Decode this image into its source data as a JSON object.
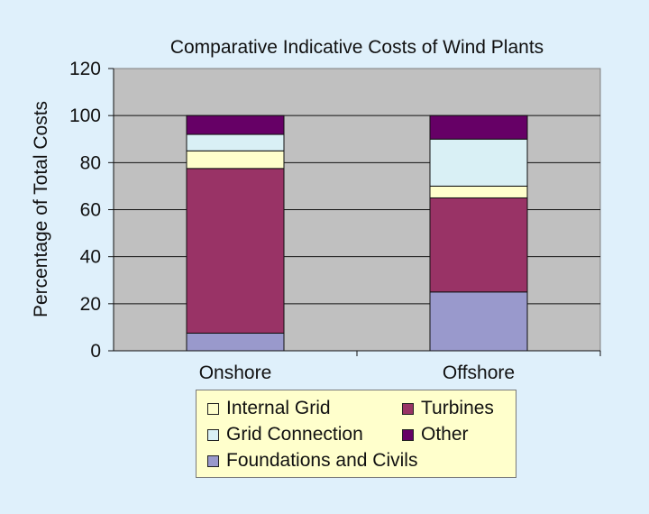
{
  "chart_data": {
    "type": "bar",
    "stacked": true,
    "title": "Comparative Indicative Costs of Wind Plants",
    "xlabel": "",
    "ylabel": "Percentage of Total Costs",
    "ylim": [
      0,
      120
    ],
    "yticks": [
      "0",
      "20",
      "40",
      "60",
      "80",
      "100",
      "120"
    ],
    "grid": true,
    "legend_position": "bottom",
    "categories": [
      "Onshore",
      "Offshore"
    ],
    "series": [
      {
        "name": "Foundations and Civils",
        "color": "#9999cc",
        "values": [
          7.5,
          25
        ]
      },
      {
        "name": "Turbines",
        "color": "#993366",
        "values": [
          70,
          40
        ]
      },
      {
        "name": "Internal Grid",
        "color": "#ffffcc",
        "values": [
          7.5,
          5
        ]
      },
      {
        "name": "Grid Connection",
        "color": "#d9f0f5",
        "values": [
          7,
          20
        ]
      },
      {
        "name": "Other",
        "color": "#660066",
        "values": [
          8,
          10
        ]
      }
    ]
  },
  "legend": {
    "items": [
      {
        "label": "Internal Grid",
        "color": "#ffffcc"
      },
      {
        "label": "Turbines",
        "color": "#993366"
      },
      {
        "label": "Grid Connection",
        "color": "#d9f0f5"
      },
      {
        "label": "Other",
        "color": "#660066"
      },
      {
        "label": "Foundations and Civils",
        "color": "#9999cc"
      }
    ]
  },
  "colors": {
    "page_background": "#dff0fb",
    "plot_background": "#c0c0c0",
    "legend_background": "#ffffcc"
  }
}
